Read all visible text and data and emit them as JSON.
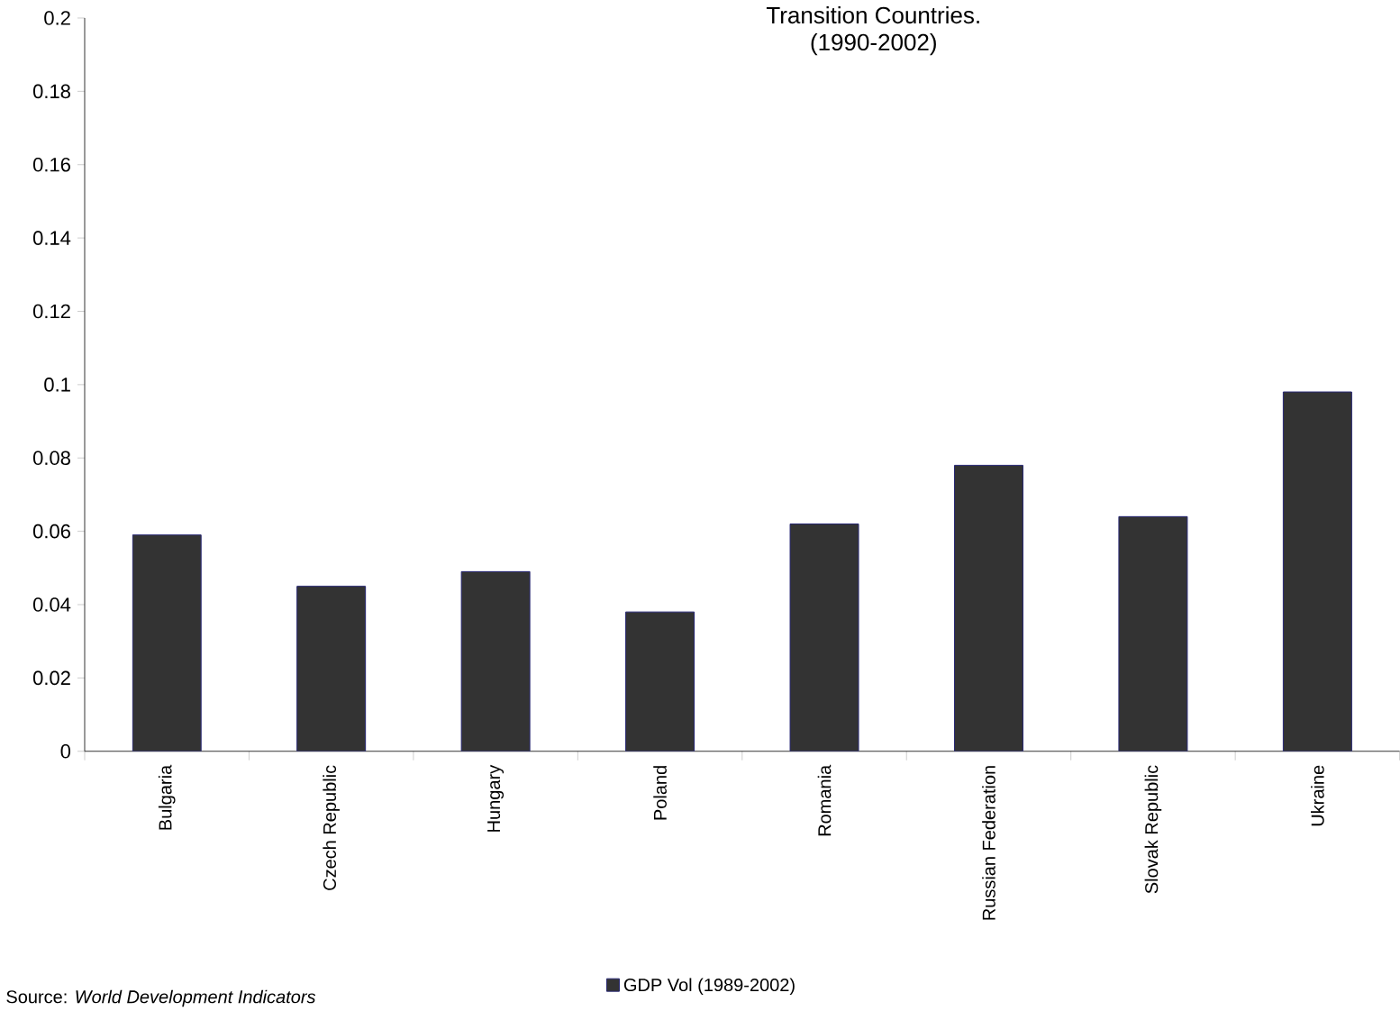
{
  "chart_data": {
    "type": "bar",
    "title": "Transition Countries.",
    "subtitle": "(1990-2002)",
    "categories": [
      "Bulgaria",
      "Czech Republic",
      "Hungary",
      "Poland",
      "Romania",
      "Russian Federation",
      "Slovak Republic",
      "Ukraine"
    ],
    "series": [
      {
        "name": "GDP Vol (1989-2002)",
        "color": "#333333",
        "values": [
          0.059,
          0.045,
          0.049,
          0.038,
          0.062,
          0.078,
          0.064,
          0.098
        ]
      }
    ],
    "ylim": [
      0,
      0.2
    ],
    "yticks": [
      0,
      0.02,
      0.04,
      0.06,
      0.08,
      0.1,
      0.12,
      0.14,
      0.16,
      0.18,
      0.2
    ],
    "legend": "bottom",
    "grid": false,
    "annotations": [
      "Source: *World Development Indicators*"
    ]
  }
}
